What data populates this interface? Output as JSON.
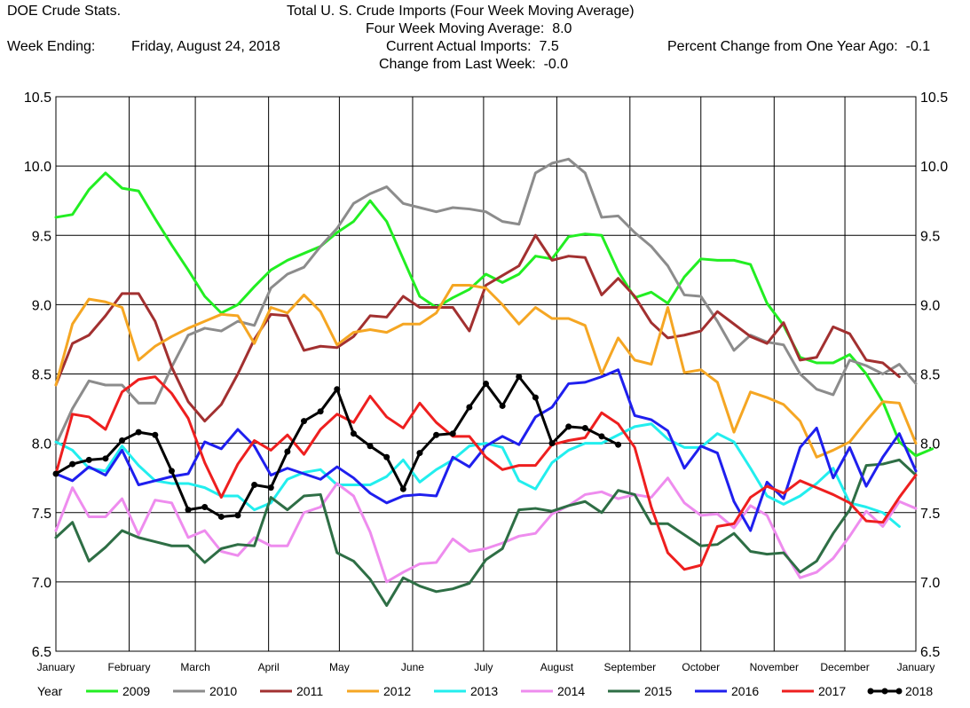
{
  "header": {
    "app_title": "DOE Crude Stats.",
    "chart_title": "Total U.  S. Crude Imports (Four Week Moving Average)",
    "four_week_label": "Four Week Moving Average:",
    "four_week_value": "8.0",
    "week_ending_label": "Week Ending:",
    "week_ending_value": "Friday, August 24, 2018",
    "current_label": "Current Actual Imports:",
    "current_value": "7.5",
    "pct_label": "Percent Change from One Year Ago:",
    "pct_value": "-0.1",
    "change_label": "Change from Last Week:",
    "change_value": "-0.0"
  },
  "legend_title": "Year",
  "chart_data": {
    "type": "line",
    "title": "Total U.  S. Crude Imports (Four Week Moving Average)",
    "ylim": [
      6.5,
      10.5
    ],
    "yticks": [
      "6.5",
      "7.0",
      "7.5",
      "8.0",
      "8.5",
      "9.0",
      "9.5",
      "10.0",
      "10.5"
    ],
    "xlim": [
      0,
      52
    ],
    "xticks": [
      {
        "label": "January",
        "week": 0
      },
      {
        "label": "February",
        "week": 4.43
      },
      {
        "label": "March",
        "week": 8.43
      },
      {
        "label": "April",
        "week": 12.86
      },
      {
        "label": "May",
        "week": 17.14
      },
      {
        "label": "June",
        "week": 21.57
      },
      {
        "label": "July",
        "week": 25.86
      },
      {
        "label": "August",
        "week": 30.29
      },
      {
        "label": "September",
        "week": 34.71
      },
      {
        "label": "October",
        "week": 39
      },
      {
        "label": "November",
        "week": 43.43
      },
      {
        "label": "December",
        "week": 47.71
      },
      {
        "label": "January",
        "week": 52
      }
    ],
    "grid": true,
    "legend_position": "bottom",
    "series": [
      {
        "name": "2009",
        "color": "#22ee22",
        "markers": false,
        "values": [
          9.63,
          9.65,
          9.83,
          9.95,
          9.84,
          9.82,
          9.62,
          9.43,
          9.25,
          9.06,
          8.94,
          9.0,
          9.13,
          9.25,
          9.32,
          9.37,
          9.42,
          9.52,
          9.6,
          9.75,
          9.6,
          9.33,
          9.06,
          8.98,
          9.05,
          9.11,
          9.22,
          9.16,
          9.22,
          9.35,
          9.33,
          9.49,
          9.51,
          9.5,
          9.24,
          9.05,
          9.09,
          9.01,
          9.2,
          9.33,
          9.32,
          9.32,
          9.29,
          9.01,
          8.85,
          8.62,
          8.58,
          8.58,
          8.64,
          8.5,
          8.3,
          8.01,
          7.91,
          7.96
        ]
      },
      {
        "name": "2010",
        "color": "#8c8c8c",
        "markers": false,
        "values": [
          7.99,
          8.25,
          8.45,
          8.42,
          8.42,
          8.29,
          8.29,
          8.55,
          8.78,
          8.83,
          8.81,
          8.88,
          8.85,
          9.12,
          9.22,
          9.27,
          9.42,
          9.55,
          9.73,
          9.8,
          9.85,
          9.73,
          9.7,
          9.67,
          9.7,
          9.69,
          9.67,
          9.6,
          9.58,
          9.95,
          10.02,
          10.05,
          9.95,
          9.63,
          9.64,
          9.52,
          9.42,
          9.28,
          9.07,
          9.06,
          8.88,
          8.67,
          8.78,
          8.73,
          8.71,
          8.5,
          8.39,
          8.35,
          8.6,
          8.56,
          8.5,
          8.57,
          8.43
        ]
      },
      {
        "name": "2011",
        "color": "#a23030",
        "markers": false,
        "values": [
          8.42,
          8.72,
          8.78,
          8.92,
          9.08,
          9.08,
          8.88,
          8.55,
          8.3,
          8.16,
          8.28,
          8.5,
          8.75,
          8.93,
          8.92,
          8.67,
          8.7,
          8.69,
          8.77,
          8.92,
          8.91,
          9.06,
          8.98,
          8.98,
          8.98,
          8.81,
          9.14,
          9.21,
          9.28,
          9.5,
          9.32,
          9.35,
          9.34,
          9.07,
          9.19,
          9.06,
          8.87,
          8.76,
          8.78,
          8.81,
          8.95,
          8.86,
          8.77,
          8.72,
          8.87,
          8.6,
          8.62,
          8.84,
          8.79,
          8.6,
          8.58,
          8.48
        ]
      },
      {
        "name": "2012",
        "color": "#f5a623",
        "markers": false,
        "values": [
          8.42,
          8.86,
          9.04,
          9.02,
          8.98,
          8.6,
          8.7,
          8.77,
          8.83,
          8.88,
          8.93,
          8.92,
          8.72,
          8.98,
          8.94,
          9.07,
          8.95,
          8.71,
          8.8,
          8.82,
          8.8,
          8.86,
          8.86,
          8.94,
          9.14,
          9.14,
          9.12,
          9.0,
          8.86,
          8.98,
          8.9,
          8.9,
          8.85,
          8.5,
          8.76,
          8.6,
          8.57,
          8.98,
          8.51,
          8.53,
          8.44,
          8.08,
          8.37,
          8.33,
          8.28,
          8.16,
          7.9,
          7.95,
          8.01,
          8.16,
          8.3,
          8.29,
          8.0
        ]
      },
      {
        "name": "2013",
        "color": "#22eeee",
        "markers": false,
        "values": [
          8.01,
          7.95,
          7.82,
          7.8,
          7.98,
          7.84,
          7.73,
          7.71,
          7.71,
          7.68,
          7.62,
          7.62,
          7.52,
          7.57,
          7.74,
          7.79,
          7.81,
          7.7,
          7.7,
          7.7,
          7.76,
          7.88,
          7.72,
          7.81,
          7.88,
          7.98,
          8.0,
          7.97,
          7.73,
          7.67,
          7.86,
          7.95,
          8.0,
          8.0,
          8.06,
          8.12,
          8.14,
          8.03,
          7.97,
          7.97,
          8.07,
          8.01,
          7.82,
          7.62,
          7.56,
          7.62,
          7.71,
          7.82,
          7.57,
          7.54,
          7.5,
          7.4
        ]
      },
      {
        "name": "2014",
        "color": "#ee8cee",
        "markers": false,
        "values": [
          7.37,
          7.68,
          7.47,
          7.47,
          7.6,
          7.34,
          7.59,
          7.57,
          7.32,
          7.37,
          7.22,
          7.19,
          7.32,
          7.26,
          7.26,
          7.5,
          7.54,
          7.71,
          7.62,
          7.36,
          7.0,
          7.07,
          7.13,
          7.14,
          7.31,
          7.22,
          7.24,
          7.28,
          7.33,
          7.35,
          7.49,
          7.55,
          7.63,
          7.65,
          7.6,
          7.63,
          7.61,
          7.75,
          7.57,
          7.48,
          7.49,
          7.39,
          7.55,
          7.48,
          7.23,
          7.03,
          7.07,
          7.17,
          7.33,
          7.51,
          7.4,
          7.58,
          7.53
        ]
      },
      {
        "name": "2015",
        "color": "#2e6e45",
        "markers": false,
        "values": [
          7.32,
          7.43,
          7.15,
          7.25,
          7.37,
          7.32,
          7.29,
          7.26,
          7.26,
          7.14,
          7.24,
          7.27,
          7.26,
          7.61,
          7.52,
          7.62,
          7.63,
          7.21,
          7.15,
          7.02,
          6.83,
          7.03,
          6.97,
          6.93,
          6.95,
          6.99,
          7.16,
          7.24,
          7.52,
          7.53,
          7.51,
          7.55,
          7.58,
          7.5,
          7.66,
          7.63,
          7.42,
          7.42,
          7.34,
          7.26,
          7.27,
          7.35,
          7.22,
          7.2,
          7.21,
          7.07,
          7.15,
          7.35,
          7.52,
          7.84,
          7.85,
          7.88,
          7.77
        ]
      },
      {
        "name": "2016",
        "color": "#1f1fee",
        "markers": false,
        "values": [
          7.78,
          7.73,
          7.83,
          7.77,
          7.95,
          7.7,
          7.73,
          7.76,
          7.78,
          8.01,
          7.96,
          8.1,
          7.98,
          7.77,
          7.82,
          7.78,
          7.74,
          7.83,
          7.75,
          7.64,
          7.57,
          7.62,
          7.63,
          7.62,
          7.9,
          7.83,
          7.98,
          8.05,
          7.99,
          8.19,
          8.26,
          8.43,
          8.44,
          8.48,
          8.53,
          8.2,
          8.17,
          8.09,
          7.82,
          7.98,
          7.93,
          7.58,
          7.37,
          7.72,
          7.6,
          7.97,
          8.11,
          7.75,
          7.97,
          7.69,
          7.9,
          8.07,
          7.8
        ]
      },
      {
        "name": "2017",
        "color": "#ee1f1f",
        "markers": false,
        "values": [
          7.78,
          8.21,
          8.19,
          8.1,
          8.37,
          8.46,
          8.48,
          8.36,
          8.18,
          7.86,
          7.61,
          7.85,
          8.02,
          7.95,
          8.06,
          7.92,
          8.1,
          8.21,
          8.15,
          8.34,
          8.19,
          8.11,
          8.29,
          8.15,
          8.05,
          8.05,
          7.9,
          7.81,
          7.84,
          7.84,
          7.99,
          8.02,
          8.04,
          8.22,
          8.14,
          7.97,
          7.54,
          7.21,
          7.09,
          7.12,
          7.4,
          7.42,
          7.61,
          7.69,
          7.64,
          7.73,
          7.68,
          7.63,
          7.57,
          7.44,
          7.43,
          7.61,
          7.77
        ]
      },
      {
        "name": "2018",
        "color": "#000000",
        "markers": true,
        "values": [
          7.78,
          7.85,
          7.88,
          7.89,
          8.02,
          8.08,
          8.06,
          7.8,
          7.52,
          7.54,
          7.47,
          7.48,
          7.7,
          7.68,
          7.94,
          8.16,
          8.23,
          8.39,
          8.07,
          7.98,
          7.9,
          7.67,
          7.93,
          8.06,
          8.07,
          8.26,
          8.43,
          8.27,
          8.48,
          8.33,
          8.0,
          8.12,
          8.11,
          8.05,
          7.99
        ]
      }
    ]
  }
}
